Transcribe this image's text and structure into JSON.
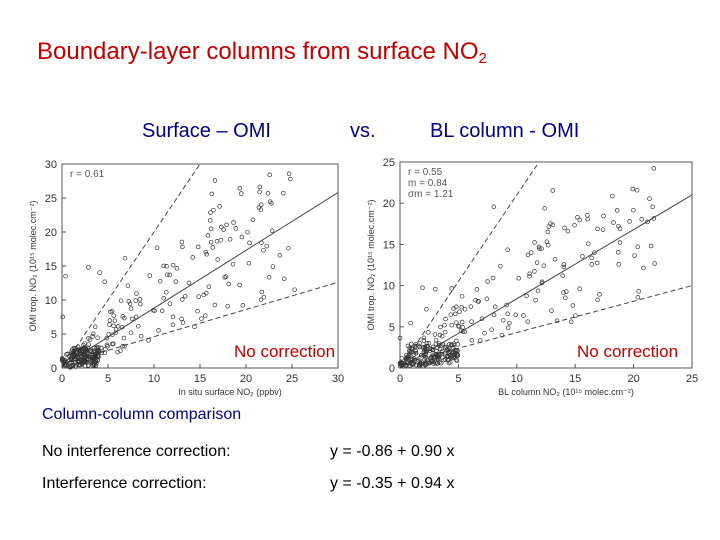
{
  "slide": {
    "title": "Boundary-layer columns from surface NO",
    "title_sub": "2",
    "subtitle_left": "Surface – OMI",
    "subtitle_mid": "vs.",
    "subtitle_right": "BL column - OMI",
    "section": "Column-column comparison",
    "rows": [
      {
        "label": "No interference correction:",
        "formula": "y = -0.86 + 0.90 x"
      },
      {
        "label": "Interference correction:",
        "formula": "y = -0.35 + 0.94 x"
      }
    ],
    "colors": {
      "title": "#c00000",
      "subtitle": "#000080",
      "annotation": "#c00000"
    }
  },
  "chart_data": [
    {
      "type": "scatter",
      "title": "",
      "xlabel": "In situ surface NO₂ (ppbv)",
      "ylabel": "OMI trop. NO₂ (10¹⁵ molec.cm⁻²)",
      "xlim": [
        0,
        30
      ],
      "ylim": [
        0,
        30
      ],
      "xticks": [
        "0",
        "5",
        "10",
        "15",
        "20",
        "25",
        "30"
      ],
      "yticks": [
        "0",
        "5",
        "10",
        "15",
        "20",
        "25",
        "30"
      ],
      "stats": [
        "r = 0.61"
      ],
      "annotation": "No correction",
      "fit_lines": [
        {
          "style": "solid",
          "intercept": 0.3,
          "slope": 0.85
        },
        {
          "style": "dashed",
          "intercept": 0.0,
          "slope": 2.0
        },
        {
          "style": "dashed",
          "intercept": 0.6,
          "slope": 0.4
        }
      ],
      "points_generator": {
        "n": 340,
        "seed": 11,
        "xmax": 30,
        "ymax": 30,
        "slope": 0.85,
        "intercept": 0.3,
        "cluster_x": [
          1,
          4
        ],
        "cluster_y": [
          0.3,
          3
        ]
      }
    },
    {
      "type": "scatter",
      "title": "",
      "xlabel": "BL column NO₂ (10¹⁵ molec.cm⁻²)",
      "ylabel": "OMI trop. NO₂ (10¹⁵ molec.cm⁻²)",
      "xlim": [
        0,
        25
      ],
      "ylim": [
        0,
        25
      ],
      "xticks": [
        "0",
        "5",
        "10",
        "15",
        "20",
        "25"
      ],
      "yticks": [
        "0",
        "5",
        "10",
        "15",
        "20",
        "25"
      ],
      "stats": [
        "r  =  0.55",
        "m  =  0.84",
        "σm  =  1.21"
      ],
      "annotation": "No correction",
      "fit_lines": [
        {
          "style": "solid",
          "intercept": 0.0,
          "slope": 0.84
        },
        {
          "style": "dashed",
          "intercept": 0.0,
          "slope": 2.1
        },
        {
          "style": "dashed",
          "intercept": 0.5,
          "slope": 0.38
        }
      ],
      "points_generator": {
        "n": 340,
        "seed": 23,
        "xmax": 25,
        "ymax": 25,
        "slope": 0.84,
        "intercept": 0.0,
        "cluster_x": [
          0.5,
          5
        ],
        "cluster_y": [
          0.3,
          3
        ]
      }
    }
  ]
}
